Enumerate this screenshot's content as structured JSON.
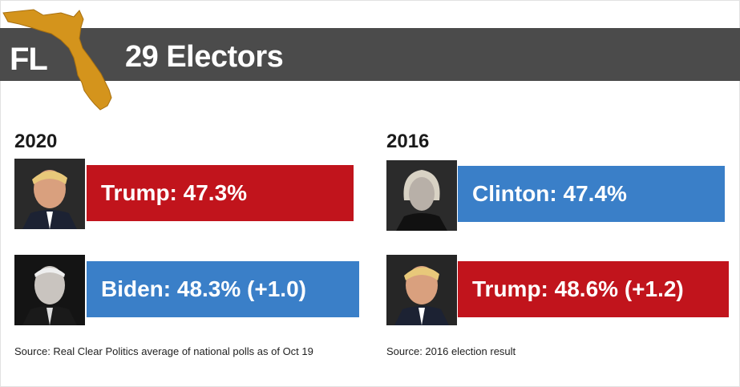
{
  "header": {
    "state": "FL",
    "electors": "29 Electors"
  },
  "colors": {
    "republican": "#c1141c",
    "democrat": "#3a7fc8",
    "banner": "#4b4b4b",
    "state_map": "#d4941c"
  },
  "chart_data": [
    {
      "type": "bar",
      "title": "2020",
      "categories": [
        "Trump",
        "Biden"
      ],
      "values": [
        47.3,
        48.3
      ],
      "labels": [
        "Trump: 47.3%",
        "Biden: 48.3% (+1.0)"
      ],
      "party": [
        "republican",
        "democrat"
      ],
      "source": "Source: Real Clear Politics average of national polls as of Oct 19"
    },
    {
      "type": "bar",
      "title": "2016",
      "categories": [
        "Clinton",
        "Trump"
      ],
      "values": [
        47.4,
        48.6
      ],
      "labels": [
        "Clinton: 47.4%",
        "Trump: 48.6% (+1.2)"
      ],
      "party": [
        "democrat",
        "republican"
      ],
      "source": "Source: 2016 election result"
    }
  ]
}
